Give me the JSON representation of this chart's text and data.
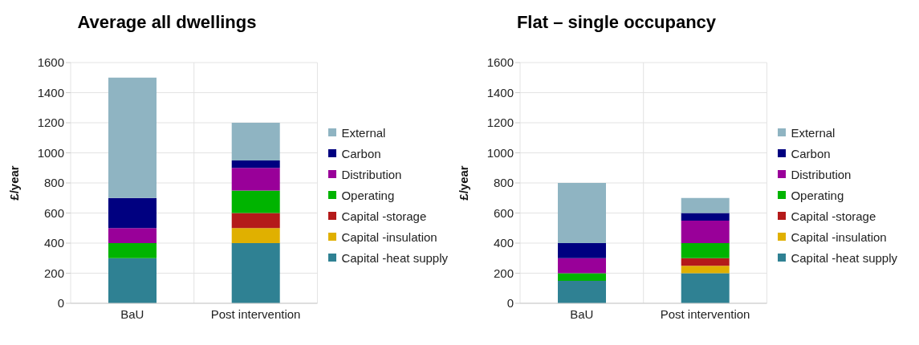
{
  "chart_data": [
    {
      "type": "bar",
      "title": "Average all dwellings",
      "ylabel": "£/year",
      "categories": [
        "BaU",
        "Post intervention"
      ],
      "stacked": true,
      "ylim": [
        0,
        1600
      ],
      "yticks": [
        0,
        200,
        400,
        600,
        800,
        1000,
        1200,
        1400,
        1600
      ],
      "grid": true,
      "legend": "right",
      "series": [
        {
          "name": "Capital -heat supply",
          "color": "#2f8193",
          "values": [
            300,
            400
          ]
        },
        {
          "name": "Capital -insulation",
          "color": "#e0b000",
          "values": [
            0,
            100
          ]
        },
        {
          "name": "Capital -storage",
          "color": "#b41a1a",
          "values": [
            0,
            100
          ]
        },
        {
          "name": "Operating",
          "color": "#00b400",
          "values": [
            100,
            150
          ]
        },
        {
          "name": "Distribution",
          "color": "#990099",
          "values": [
            100,
            150
          ]
        },
        {
          "name": "Carbon",
          "color": "#000080",
          "values": [
            200,
            50
          ]
        },
        {
          "name": "External",
          "color": "#8fb4c2",
          "values": [
            800,
            250
          ]
        }
      ]
    },
    {
      "type": "bar",
      "title": "Flat – single occupancy",
      "ylabel": "£/year",
      "categories": [
        "BaU",
        "Post intervention"
      ],
      "stacked": true,
      "ylim": [
        0,
        1600
      ],
      "yticks": [
        0,
        200,
        400,
        600,
        800,
        1000,
        1200,
        1400,
        1600
      ],
      "grid": true,
      "legend": "right",
      "series": [
        {
          "name": "Capital -heat supply",
          "color": "#2f8193",
          "values": [
            150,
            200
          ]
        },
        {
          "name": "Capital -insulation",
          "color": "#e0b000",
          "values": [
            0,
            50
          ]
        },
        {
          "name": "Capital -storage",
          "color": "#b41a1a",
          "values": [
            0,
            50
          ]
        },
        {
          "name": "Operating",
          "color": "#00b400",
          "values": [
            50,
            100
          ]
        },
        {
          "name": "Distribution",
          "color": "#990099",
          "values": [
            100,
            150
          ]
        },
        {
          "name": "Carbon",
          "color": "#000080",
          "values": [
            100,
            50
          ]
        },
        {
          "name": "External",
          "color": "#8fb4c2",
          "values": [
            400,
            100
          ]
        }
      ]
    }
  ]
}
